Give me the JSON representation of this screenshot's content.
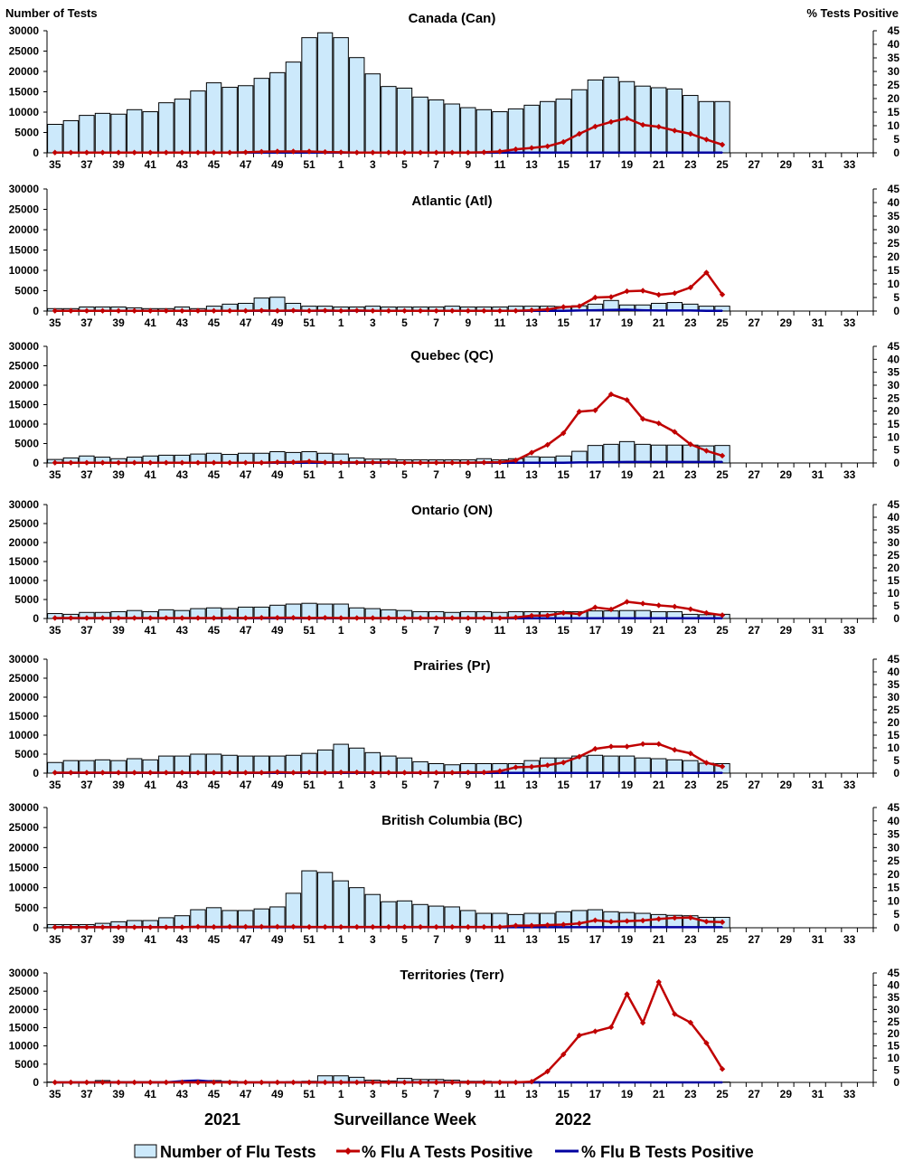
{
  "chart_data": {
    "type": "bar+line",
    "left_axis_label": "Number of Tests",
    "right_axis_label": "% Tests Positive",
    "xlabel": "Surveillance Week",
    "year_labels": [
      "2021",
      "2022"
    ],
    "ylim_left": [
      0,
      30000
    ],
    "yticks_left": [
      0,
      5000,
      10000,
      15000,
      20000,
      25000,
      30000
    ],
    "ylim_right": [
      0,
      45
    ],
    "yticks_right": [
      0,
      5,
      10,
      15,
      20,
      25,
      30,
      35,
      40,
      45
    ],
    "legend": [
      "Number of Flu Tests",
      "% Flu A Tests Positive",
      "% Flu B Tests Positive"
    ],
    "legend_position": "bottom",
    "colors": {
      "bars": "#cce9fb",
      "flu_a": "#c00000",
      "flu_b": "#0000a0"
    },
    "categories": [
      35,
      36,
      37,
      38,
      39,
      40,
      41,
      42,
      43,
      44,
      45,
      46,
      47,
      48,
      49,
      50,
      51,
      52,
      1,
      2,
      3,
      4,
      5,
      6,
      7,
      8,
      9,
      10,
      11,
      12,
      13,
      14,
      15,
      16,
      17,
      18,
      19,
      20,
      21,
      22,
      23,
      24,
      25,
      26,
      27,
      28,
      29,
      30,
      31,
      32,
      33,
      34
    ],
    "tick_labels": [
      35,
      37,
      39,
      41,
      43,
      45,
      47,
      49,
      51,
      1,
      3,
      5,
      7,
      9,
      11,
      13,
      15,
      17,
      19,
      21,
      23,
      25,
      27,
      29,
      31,
      33
    ],
    "panels": [
      {
        "title": "Canada (Can)",
        "tests": [
          7000,
          7900,
          9200,
          9700,
          9500,
          10600,
          10100,
          12300,
          13200,
          15200,
          17200,
          16100,
          16500,
          18300,
          19700,
          22300,
          28300,
          29500,
          28300,
          23400,
          19400,
          16300,
          15900,
          13700,
          13000,
          12000,
          11100,
          10600,
          10100,
          10800,
          11700,
          12600,
          13200,
          15500,
          17900,
          18600,
          17500,
          16400,
          16000,
          15700,
          14100,
          12600,
          12600
        ],
        "flu_a": [
          0.1,
          0.1,
          0.1,
          0.1,
          0.1,
          0.1,
          0.1,
          0.1,
          0.1,
          0.1,
          0.1,
          0.1,
          0.2,
          0.4,
          0.5,
          0.5,
          0.5,
          0.3,
          0.2,
          0.1,
          0.1,
          0.1,
          0.1,
          0.1,
          0.1,
          0.1,
          0.1,
          0.2,
          0.5,
          1.3,
          1.8,
          2.4,
          4.0,
          7.0,
          9.7,
          11.4,
          12.7,
          10.3,
          9.6,
          8.2,
          7.0,
          4.9,
          3.0
        ],
        "flu_b": [
          0.1,
          0.1,
          0.1,
          0.1,
          0.1,
          0.1,
          0.1,
          0.1,
          0.1,
          0.1,
          0.1,
          0.1,
          0.1,
          0.1,
          0.1,
          0.1,
          0.1,
          0.1,
          0.1,
          0.1,
          0.1,
          0.1,
          0.1,
          0.1,
          0.1,
          0.1,
          0.1,
          0.1,
          0.1,
          0.1,
          0.1,
          0.1,
          0.1,
          0.1,
          0.1,
          0.1,
          0.1,
          0.1,
          0.1,
          0.1,
          0.1,
          0.1,
          0.1
        ]
      },
      {
        "title": "Atlantic (Atl)",
        "tests": [
          600,
          600,
          1000,
          1000,
          1000,
          800,
          600,
          600,
          1000,
          600,
          1200,
          1700,
          1900,
          3200,
          3400,
          1900,
          1200,
          1200,
          1000,
          1000,
          1200,
          1000,
          1000,
          1000,
          1000,
          1200,
          1000,
          1000,
          1000,
          1200,
          1200,
          1200,
          1100,
          1300,
          1700,
          2600,
          1500,
          1500,
          1900,
          2100,
          1700,
          1200,
          1200
        ],
        "flu_a": [
          0.1,
          0.1,
          0.1,
          0.1,
          0.1,
          0.1,
          0.1,
          0.1,
          0.1,
          0.1,
          0.1,
          0.1,
          0.1,
          0.2,
          0.1,
          0.2,
          0.1,
          0.2,
          0.1,
          0.2,
          0.1,
          0.1,
          0.1,
          0.1,
          0.1,
          0.1,
          0.1,
          0.1,
          0.1,
          0.1,
          0.3,
          0.6,
          1.5,
          1.8,
          5.0,
          5.2,
          7.3,
          7.5,
          6.0,
          6.6,
          8.7,
          14.2,
          6.1
        ],
        "flu_b": [
          0.1,
          0.1,
          0.1,
          0.1,
          0.1,
          0.1,
          0.1,
          0.1,
          0.1,
          0.1,
          0.1,
          0.1,
          0.1,
          0.1,
          0.1,
          0.1,
          0.1,
          0.1,
          0.1,
          0.1,
          0.1,
          0.1,
          0.1,
          0.1,
          0.1,
          0.1,
          0.1,
          0.1,
          0.1,
          0.1,
          0.1,
          0.1,
          0.1,
          0.2,
          0.3,
          0.4,
          0.5,
          0.3,
          0.2,
          0.2,
          0.2,
          0.1,
          0.1
        ]
      },
      {
        "title": "Quebec (QC)",
        "tests": [
          900,
          1300,
          1800,
          1500,
          1100,
          1500,
          1800,
          2000,
          2000,
          2300,
          2500,
          2200,
          2500,
          2500,
          2900,
          2700,
          2900,
          2500,
          2300,
          1300,
          1000,
          1000,
          800,
          800,
          800,
          800,
          800,
          1100,
          800,
          1100,
          1600,
          1500,
          1800,
          3000,
          4500,
          4800,
          5500,
          4800,
          4600,
          4600,
          4600,
          4400,
          4500
        ],
        "flu_a": [
          0.1,
          0.1,
          0.1,
          0.1,
          0.1,
          0.1,
          0.1,
          0.1,
          0.1,
          0.1,
          0.1,
          0.1,
          0.1,
          0.1,
          0.3,
          0.3,
          0.6,
          0.2,
          0.2,
          0.2,
          0.2,
          0.2,
          0.1,
          0.1,
          0.1,
          0.1,
          0.1,
          0.2,
          0.3,
          1.0,
          4.0,
          7.0,
          11.5,
          19.8,
          20.3,
          26.5,
          24.3,
          17.0,
          15.3,
          12.0,
          7.2,
          4.7,
          2.8
        ],
        "flu_b": [
          0.1,
          0.1,
          0.1,
          0.1,
          0.1,
          0.1,
          0.1,
          0.1,
          0.1,
          0.1,
          0.1,
          0.1,
          0.1,
          0.1,
          0.1,
          0.1,
          0.1,
          0.1,
          0.1,
          0.1,
          0.1,
          0.1,
          0.1,
          0.1,
          0.1,
          0.1,
          0.1,
          0.1,
          0.1,
          0.1,
          0.1,
          0.1,
          0.1,
          0.2,
          0.2,
          0.3,
          0.4,
          0.4,
          0.4,
          0.4,
          0.4,
          0.4,
          0.4
        ]
      },
      {
        "title": "Ontario (ON)",
        "tests": [
          1300,
          1100,
          1600,
          1600,
          1800,
          2100,
          1800,
          2300,
          2100,
          2600,
          2800,
          2600,
          3000,
          3000,
          3500,
          3800,
          4000,
          3800,
          3800,
          2800,
          2600,
          2300,
          2100,
          1800,
          1800,
          1600,
          1800,
          1800,
          1600,
          1800,
          1800,
          1800,
          1800,
          1800,
          2000,
          2000,
          2100,
          2100,
          1800,
          1800,
          1100,
          1000,
          1100
        ],
        "flu_a": [
          0.2,
          0.2,
          0.2,
          0.2,
          0.2,
          0.2,
          0.2,
          0.2,
          0.2,
          0.2,
          0.2,
          0.3,
          0.2,
          0.3,
          0.3,
          0.3,
          0.2,
          0.3,
          0.2,
          0.2,
          0.2,
          0.2,
          0.2,
          0.2,
          0.2,
          0.2,
          0.2,
          0.2,
          0.2,
          0.4,
          1.1,
          1.2,
          2.2,
          1.8,
          4.4,
          3.6,
          6.6,
          5.9,
          5.2,
          4.7,
          3.7,
          2.2,
          1.3
        ],
        "flu_b": [
          0.1,
          0.1,
          0.1,
          0.1,
          0.1,
          0.1,
          0.1,
          0.1,
          0.1,
          0.1,
          0.1,
          0.1,
          0.1,
          0.1,
          0.1,
          0.1,
          0.1,
          0.1,
          0.1,
          0.1,
          0.1,
          0.1,
          0.1,
          0.1,
          0.1,
          0.1,
          0.1,
          0.1,
          0.1,
          0.1,
          0.1,
          0.1,
          0.1,
          0.1,
          0.1,
          0.1,
          0.1,
          0.1,
          0.1,
          0.1,
          0.1,
          0.1,
          0.1
        ]
      },
      {
        "title": "Prairies (Pr)",
        "tests": [
          2800,
          3300,
          3300,
          3500,
          3300,
          3800,
          3500,
          4500,
          4500,
          5000,
          5000,
          4700,
          4500,
          4500,
          4500,
          4700,
          5200,
          6100,
          7600,
          6600,
          5400,
          4500,
          4000,
          3000,
          2500,
          2200,
          2500,
          2500,
          2500,
          2500,
          3300,
          4000,
          4000,
          4500,
          4700,
          4500,
          4500,
          4000,
          3800,
          3500,
          3300,
          2600,
          2500
        ],
        "flu_a": [
          0.2,
          0.2,
          0.2,
          0.2,
          0.2,
          0.2,
          0.2,
          0.2,
          0.2,
          0.2,
          0.2,
          0.2,
          0.2,
          0.2,
          0.4,
          0.2,
          0.3,
          0.2,
          0.3,
          0.3,
          0.2,
          0.2,
          0.2,
          0.2,
          0.2,
          0.2,
          0.3,
          0.3,
          0.8,
          2.3,
          2.5,
          3.1,
          4.2,
          6.5,
          9.6,
          10.5,
          10.5,
          11.5,
          11.5,
          9.2,
          7.8,
          4.1,
          2.6
        ],
        "flu_b": [
          0.1,
          0.1,
          0.1,
          0.1,
          0.1,
          0.1,
          0.1,
          0.1,
          0.1,
          0.1,
          0.1,
          0.1,
          0.1,
          0.1,
          0.1,
          0.1,
          0.1,
          0.1,
          0.1,
          0.1,
          0.1,
          0.1,
          0.1,
          0.1,
          0.1,
          0.1,
          0.1,
          0.1,
          0.1,
          0.1,
          0.1,
          0.1,
          0.1,
          0.1,
          0.1,
          0.1,
          0.1,
          0.1,
          0.1,
          0.1,
          0.1,
          0.1,
          0.1
        ]
      },
      {
        "title": "British Columbia (BC)",
        "tests": [
          800,
          800,
          800,
          1100,
          1500,
          1800,
          1800,
          2500,
          3000,
          4500,
          5000,
          4300,
          4300,
          4700,
          5200,
          8600,
          14200,
          13800,
          11700,
          10000,
          8300,
          6500,
          6700,
          5800,
          5400,
          5200,
          4300,
          3600,
          3600,
          3300,
          3600,
          3600,
          4000,
          4300,
          4500,
          4000,
          3800,
          3600,
          3300,
          3100,
          3000,
          2600,
          2600
        ],
        "flu_a": [
          0.2,
          0.2,
          0.2,
          0.2,
          0.2,
          0.2,
          0.2,
          0.2,
          0.2,
          0.4,
          0.3,
          0.4,
          0.4,
          0.4,
          0.4,
          0.4,
          0.3,
          0.3,
          0.3,
          0.3,
          0.3,
          0.3,
          0.3,
          0.3,
          0.3,
          0.3,
          0.3,
          0.3,
          0.3,
          0.8,
          0.8,
          1.0,
          1.2,
          1.6,
          2.8,
          2.3,
          2.5,
          2.7,
          3.3,
          3.7,
          3.8,
          2.3,
          2.1
        ],
        "flu_b": [
          0.2,
          0.2,
          0.2,
          0.2,
          0.2,
          0.2,
          0.2,
          0.2,
          0.2,
          0.3,
          0.2,
          0.2,
          0.2,
          0.2,
          0.2,
          0.2,
          0.2,
          0.2,
          0.2,
          0.2,
          0.2,
          0.2,
          0.2,
          0.2,
          0.2,
          0.2,
          0.2,
          0.2,
          0.2,
          0.2,
          0.2,
          0.2,
          0.2,
          0.2,
          0.2,
          0.2,
          0.2,
          0.2,
          0.2,
          0.2,
          0.2,
          0.2,
          0.2
        ]
      },
      {
        "title": "Territories (Terr)",
        "tests": [
          100,
          100,
          100,
          500,
          200,
          200,
          200,
          200,
          300,
          300,
          500,
          300,
          100,
          100,
          100,
          200,
          300,
          1800,
          1800,
          1400,
          600,
          400,
          1100,
          800,
          800,
          600,
          300,
          300,
          200,
          200,
          200,
          100,
          100,
          100,
          100,
          100,
          100,
          100,
          100,
          100,
          100,
          100,
          100
        ],
        "flu_a": [
          0,
          0,
          0,
          0,
          0,
          0,
          0,
          0,
          0,
          0,
          0,
          0,
          0,
          0,
          0,
          0,
          0,
          0,
          0,
          0,
          0,
          0,
          0,
          0,
          0,
          0,
          0,
          0,
          0,
          0,
          0.3,
          4.5,
          11.5,
          19.3,
          21.0,
          22.7,
          36.3,
          24.5,
          41.3,
          28.1,
          24.6,
          16.2,
          5.5
        ],
        "flu_b": [
          0,
          0,
          0,
          0,
          0,
          0,
          0,
          0,
          0.5,
          0.8,
          0.3,
          0,
          0,
          0,
          0,
          0,
          0,
          0,
          0,
          0,
          0,
          0,
          0,
          0,
          0,
          0,
          0,
          0,
          0,
          0,
          0,
          0,
          0,
          0,
          0,
          0,
          0,
          0,
          0,
          0,
          0,
          0,
          0
        ]
      }
    ]
  }
}
